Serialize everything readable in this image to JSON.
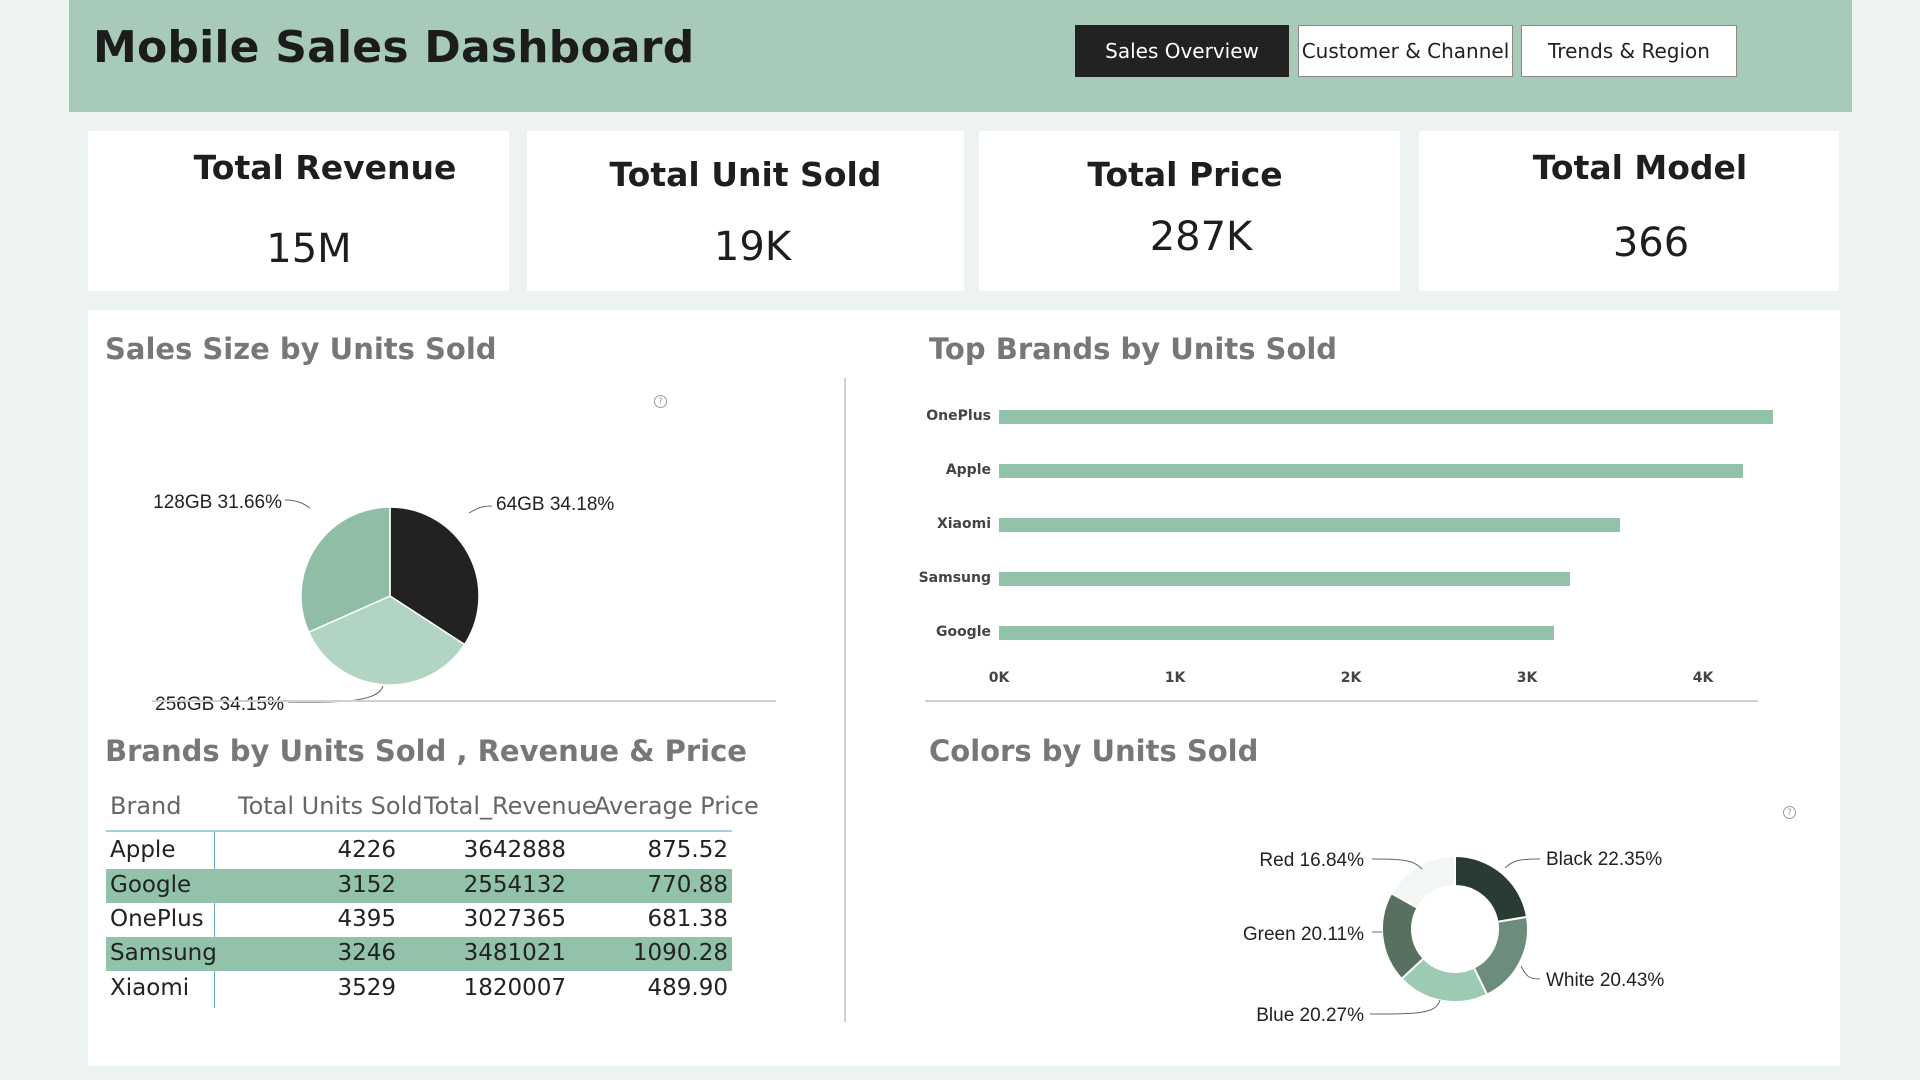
{
  "header": {
    "title": "Mobile Sales Dashboard",
    "tabs": [
      {
        "label": "Sales Overview",
        "active": true
      },
      {
        "label": "Customer & Channel",
        "active": false
      },
      {
        "label": "Trends & Region",
        "active": false
      }
    ]
  },
  "kpis": [
    {
      "label": "Total Revenue",
      "value": "15M"
    },
    {
      "label": "Total Unit Sold",
      "value": "19K"
    },
    {
      "label": "Total Price",
      "value": "287K"
    },
    {
      "label": "Total Model",
      "value": "366"
    }
  ],
  "colors": {
    "header_bg": "#a7cbb8",
    "accent": "#93c2aa",
    "dark": "#222222"
  },
  "chart_data": [
    {
      "type": "pie",
      "title": "Sales Size by Units Sold",
      "slices": [
        {
          "label": "64GB",
          "percent": 34.18,
          "display": "64GB 34.18%",
          "color": "#222222"
        },
        {
          "label": "256GB",
          "percent": 34.15,
          "display": "256GB 34.15%",
          "color": "#b1d5c2"
        },
        {
          "label": "128GB",
          "percent": 31.66,
          "display": "128GB 31.66%",
          "color": "#8fbea5"
        }
      ]
    },
    {
      "type": "bar",
      "orientation": "horizontal",
      "title": "Top Brands by Units Sold",
      "categories": [
        "OnePlus",
        "Apple",
        "Xiaomi",
        "Samsung",
        "Google"
      ],
      "values": [
        4395,
        4226,
        3529,
        3246,
        3152
      ],
      "xlim": [
        0,
        4400
      ],
      "x_ticks": [
        {
          "value": 0,
          "label": "0K"
        },
        {
          "value": 1000,
          "label": "1K"
        },
        {
          "value": 2000,
          "label": "2K"
        },
        {
          "value": 3000,
          "label": "3K"
        },
        {
          "value": 4000,
          "label": "4K"
        }
      ],
      "color": "#93c2aa"
    },
    {
      "type": "pie",
      "variant": "donut",
      "title": "Colors by Units Sold",
      "slices": [
        {
          "label": "Black",
          "percent": 22.35,
          "display": "Black 22.35%",
          "color": "#2a3b33"
        },
        {
          "label": "White",
          "percent": 20.43,
          "display": "White 20.43%",
          "color": "#6d8d7c"
        },
        {
          "label": "Blue",
          "percent": 20.27,
          "display": "Blue 20.27%",
          "color": "#9ccab2"
        },
        {
          "label": "Green",
          "percent": 20.11,
          "display": "Green 20.11%",
          "color": "#58705f"
        },
        {
          "label": "Red",
          "percent": 16.84,
          "display": "Red 16.84%",
          "color": "#f3f7f4"
        }
      ]
    },
    {
      "type": "table",
      "title": "Brands by Units Sold , Revenue & Price",
      "columns": [
        "Brand",
        "Total Units Sold",
        "Total_Revenue",
        "Average Price"
      ],
      "rows": [
        [
          "Apple",
          "4226",
          "3642888",
          "875.52"
        ],
        [
          "Google",
          "3152",
          "2554132",
          "770.88"
        ],
        [
          "OnePlus",
          "4395",
          "3027365",
          "681.38"
        ],
        [
          "Samsung",
          "3246",
          "3481021",
          "1090.28"
        ],
        [
          "Xiaomi",
          "3529",
          "1820007",
          "489.90"
        ]
      ]
    }
  ],
  "icons": {
    "help": "help-icon",
    "help_glyph": "?"
  }
}
